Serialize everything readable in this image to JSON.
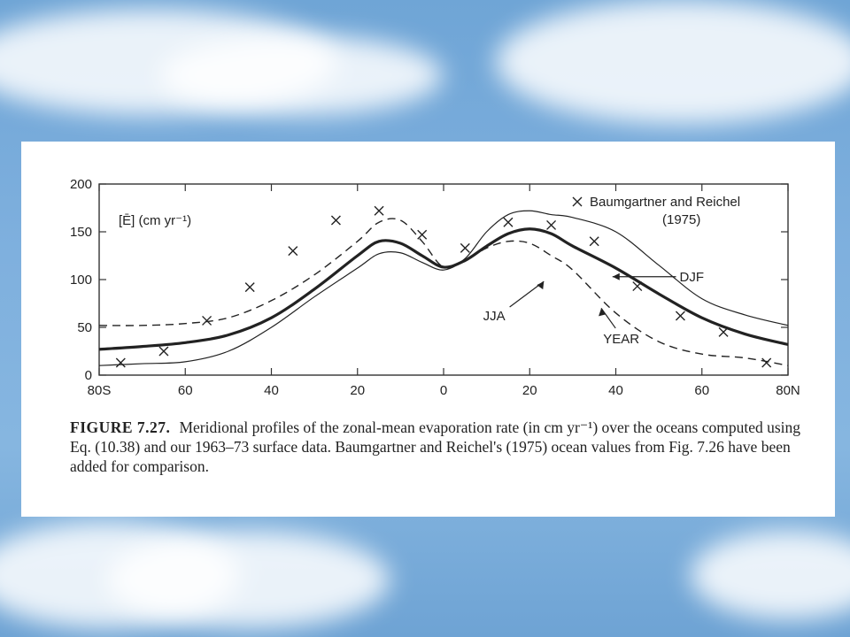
{
  "chart_data": {
    "type": "line",
    "ylabel": "[Ē] (cm yr⁻¹)",
    "ylim": [
      0,
      200
    ],
    "yticks": [
      0,
      50,
      100,
      150,
      200
    ],
    "xlim": [
      -80,
      80
    ],
    "xticks": [
      {
        "value": -80,
        "label": "80S"
      },
      {
        "value": -60,
        "label": "60"
      },
      {
        "value": -40,
        "label": "40"
      },
      {
        "value": -20,
        "label": "20"
      },
      {
        "value": 0,
        "label": "0"
      },
      {
        "value": 20,
        "label": "20"
      },
      {
        "value": 40,
        "label": "40"
      },
      {
        "value": 60,
        "label": "60"
      },
      {
        "value": 80,
        "label": "80N"
      }
    ],
    "series": [
      {
        "name": "YEAR",
        "style": "thick",
        "x": [
          -80,
          -70,
          -60,
          -50,
          -40,
          -30,
          -20,
          -15,
          -10,
          -5,
          0,
          5,
          10,
          15,
          20,
          25,
          30,
          40,
          50,
          60,
          70,
          80
        ],
        "y": [
          27,
          30,
          34,
          42,
          60,
          90,
          125,
          140,
          138,
          125,
          113,
          120,
          135,
          148,
          153,
          148,
          135,
          112,
          85,
          60,
          43,
          32
        ]
      },
      {
        "name": "DJF",
        "style": "thin",
        "x": [
          -80,
          -70,
          -60,
          -50,
          -40,
          -30,
          -20,
          -15,
          -10,
          -5,
          0,
          5,
          10,
          15,
          20,
          25,
          30,
          40,
          50,
          60,
          70,
          80
        ],
        "y": [
          10,
          12,
          14,
          25,
          50,
          82,
          112,
          127,
          128,
          118,
          110,
          122,
          150,
          168,
          172,
          168,
          165,
          150,
          115,
          80,
          63,
          52
        ]
      },
      {
        "name": "JJA",
        "style": "dashed",
        "x": [
          -80,
          -70,
          -60,
          -50,
          -40,
          -30,
          -20,
          -15,
          -10,
          -5,
          0,
          5,
          10,
          15,
          20,
          25,
          30,
          40,
          50,
          60,
          70,
          80
        ],
        "y": [
          52,
          52,
          54,
          60,
          78,
          105,
          140,
          160,
          162,
          140,
          113,
          120,
          133,
          140,
          138,
          125,
          110,
          65,
          35,
          22,
          18,
          10
        ]
      },
      {
        "name": "Baumgartner and Reichel (1975)",
        "style": "x-marker",
        "x": [
          -75,
          -65,
          -55,
          -45,
          -35,
          -25,
          -15,
          -5,
          5,
          15,
          25,
          35,
          45,
          55,
          65,
          75
        ],
        "y": [
          13,
          25,
          57,
          92,
          130,
          162,
          172,
          147,
          133,
          160,
          157,
          140,
          93,
          62,
          45,
          13
        ]
      }
    ],
    "legend": {
      "marker": "×",
      "text_line1": "Baumgartner and Reichel",
      "text_line2": "(1975)"
    },
    "annotations": [
      {
        "name": "DJF",
        "label": "DJF"
      },
      {
        "name": "JJA",
        "label": "JJA"
      },
      {
        "name": "YEAR",
        "label": "YEAR"
      }
    ]
  },
  "caption": {
    "figure": "FIGURE 7.27.",
    "text": "Meridional profiles of the zonal-mean evaporation rate (in cm yr⁻¹) over the oceans computed using Eq. (10.38) and our 1963–73 surface data. Baumgartner and Reichel's (1975) ocean values from Fig. 7.26 have been added for comparison."
  }
}
